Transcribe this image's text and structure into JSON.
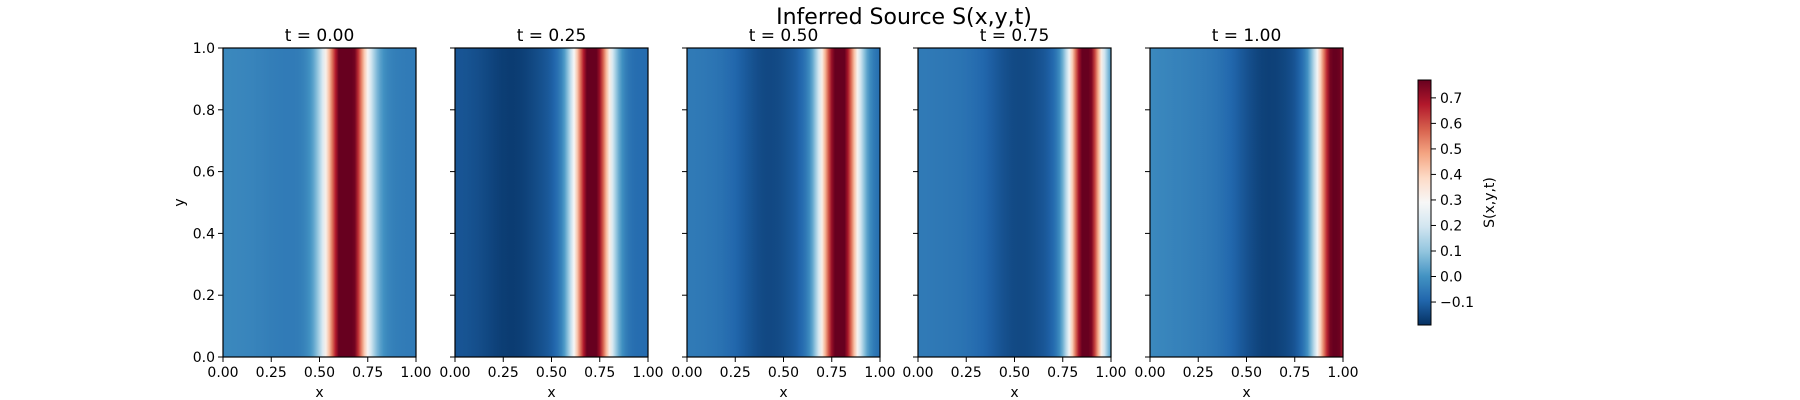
{
  "chart_data": {
    "type": "heatmap",
    "title": "Inferred Source S(x,y,t)",
    "xlabel": "x",
    "ylabel": "y",
    "xlim": [
      0,
      1
    ],
    "ylim": [
      0,
      1
    ],
    "x_ticks": [
      "0.00",
      "0.25",
      "0.50",
      "0.75",
      "1.00"
    ],
    "y_ticks": [
      "0.0",
      "0.2",
      "0.4",
      "0.6",
      "0.8",
      "1.0"
    ],
    "colormap": "RdBu_r",
    "colorbar": {
      "label": "S(x,y,t)",
      "range": [
        -0.19,
        0.77
      ],
      "ticks": [
        "−0.1",
        "0.0",
        "0.1",
        "0.2",
        "0.3",
        "0.4",
        "0.5",
        "0.6",
        "0.7"
      ],
      "tick_values": [
        -0.1,
        0.0,
        0.1,
        0.2,
        0.3,
        0.4,
        0.5,
        0.6,
        0.7
      ]
    },
    "panels": [
      {
        "title": "t = 0.00",
        "peak_x": 0.64,
        "peak_width": 0.11,
        "bg_left": -0.02,
        "bg_right": -0.05,
        "trough_x": 0.35,
        "trough_depth": 0.02
      },
      {
        "title": "t = 0.25",
        "peak_x": 0.71,
        "peak_width": 0.1,
        "bg_left": -0.12,
        "bg_right": -0.08,
        "trough_x": 0.3,
        "trough_depth": 0.06
      },
      {
        "title": "t = 0.50",
        "peak_x": 0.79,
        "peak_width": 0.1,
        "bg_left": -0.05,
        "bg_right": -0.09,
        "trough_x": 0.42,
        "trough_depth": 0.08
      },
      {
        "title": "t = 0.75",
        "peak_x": 0.87,
        "peak_width": 0.09,
        "bg_left": -0.05,
        "bg_right": -0.1,
        "trough_x": 0.52,
        "trough_depth": 0.07
      },
      {
        "title": "t = 1.00",
        "peak_x": 0.96,
        "peak_width": 0.1,
        "bg_left": -0.02,
        "bg_right": -0.12,
        "trough_x": 0.6,
        "trough_depth": 0.08
      }
    ]
  }
}
